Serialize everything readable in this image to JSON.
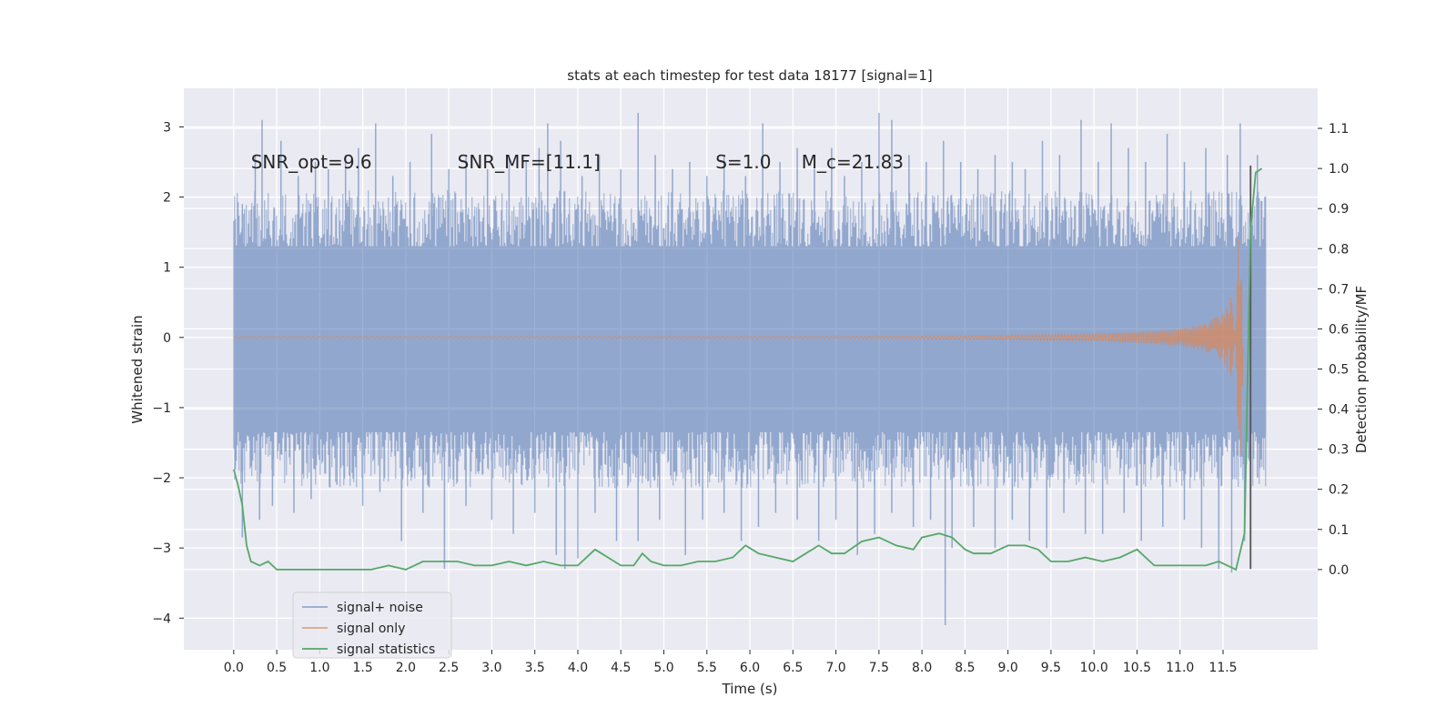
{
  "chart_data": {
    "type": "line",
    "title": "stats at each timestep for test data 18177 [signal=1]",
    "xlabel": "Time (s)",
    "ylabel_left": "Whitened strain",
    "ylabel_right": "Detection probability/MF",
    "xlim": [
      -0.58,
      12.6
    ],
    "ylim_left": [
      -4.45,
      3.55
    ],
    "ylim_right": [
      -0.2,
      1.2
    ],
    "x_ticks": [
      0.0,
      0.5,
      1.0,
      1.5,
      2.0,
      2.5,
      3.0,
      3.5,
      4.0,
      4.5,
      5.0,
      5.5,
      6.0,
      6.5,
      7.0,
      7.5,
      8.0,
      8.5,
      9.0,
      9.5,
      10.0,
      10.5,
      11.0,
      11.5
    ],
    "x_tick_labels": [
      "0.0",
      "0.5",
      "1.0",
      "1.5",
      "2.0",
      "2.5",
      "3.0",
      "3.5",
      "4.0",
      "4.5",
      "5.0",
      "5.5",
      "6.0",
      "6.5",
      "7.0",
      "7.5",
      "8.0",
      "8.5",
      "9.0",
      "9.5",
      "10.0",
      "10.5",
      "11.0",
      "11.5"
    ],
    "y_left_ticks": [
      3,
      2,
      1,
      0,
      -1,
      -2,
      -3,
      -4
    ],
    "y_left_tick_labels": [
      "3",
      "2",
      "1",
      "0",
      "−1",
      "−2",
      "−3",
      "−4"
    ],
    "y_right_ticks": [
      1.1,
      1.0,
      0.9,
      0.8,
      0.7,
      0.6,
      0.5,
      0.4,
      0.3,
      0.2,
      0.1,
      0.0
    ],
    "y_right_tick_labels": [
      "1.1",
      "1.0",
      "0.9",
      "0.8",
      "0.7",
      "0.6",
      "0.5",
      "0.4",
      "0.3",
      "0.2",
      "0.1",
      "0.0"
    ],
    "grid": true,
    "legend_position": "lower-left",
    "annotations": [
      {
        "text": "SNR_opt=9.6",
        "x": 0.2,
        "y_right": 1.0
      },
      {
        "text": "SNR_MF=[11.1]",
        "x": 2.6,
        "y_right": 1.0
      },
      {
        "text": "S=1.0",
        "x": 5.6,
        "y_right": 1.0
      },
      {
        "text": "M_c=21.83",
        "x": 6.6,
        "y_right": 1.0
      }
    ],
    "vline": {
      "x": 11.82,
      "y_left_range": [
        -3.3,
        2.45
      ],
      "color": "#555555"
    },
    "series": [
      {
        "name": "signal+ noise",
        "color": "#4c72b0",
        "axis": "left",
        "x_range": [
          0.0,
          12.0
        ],
        "core_envelope": [
          -1.35,
          1.3
        ],
        "peaks": [
          [
            0.1,
            1.9
          ],
          [
            0.25,
            2.6
          ],
          [
            0.33,
            3.1
          ],
          [
            0.55,
            2.8
          ],
          [
            0.75,
            2.3
          ],
          [
            0.95,
            2.5
          ],
          [
            1.1,
            2.4
          ],
          [
            1.3,
            2.6
          ],
          [
            1.45,
            2.7
          ],
          [
            1.65,
            3.05
          ],
          [
            1.85,
            2.3
          ],
          [
            2.05,
            2.5
          ],
          [
            2.3,
            2.9
          ],
          [
            2.5,
            2.4
          ],
          [
            2.7,
            2.6
          ],
          [
            2.95,
            2.4
          ],
          [
            3.2,
            2.6
          ],
          [
            3.4,
            2.5
          ],
          [
            3.55,
            2.7
          ],
          [
            3.65,
            3.05
          ],
          [
            3.8,
            2.8
          ],
          [
            4.05,
            2.3
          ],
          [
            4.25,
            2.6
          ],
          [
            4.5,
            2.4
          ],
          [
            4.7,
            3.2
          ],
          [
            4.9,
            2.6
          ],
          [
            5.1,
            2.4
          ],
          [
            5.3,
            2.5
          ],
          [
            5.5,
            2.3
          ],
          [
            5.7,
            2.6
          ],
          [
            5.95,
            2.3
          ],
          [
            6.15,
            3.05
          ],
          [
            6.35,
            2.5
          ],
          [
            6.55,
            2.7
          ],
          [
            6.75,
            2.4
          ],
          [
            6.95,
            2.7
          ],
          [
            7.1,
            2.3
          ],
          [
            7.3,
            2.5
          ],
          [
            7.5,
            3.2
          ],
          [
            7.65,
            3.1
          ],
          [
            7.85,
            2.6
          ],
          [
            8.05,
            2.5
          ],
          [
            8.25,
            2.8
          ],
          [
            8.45,
            2.5
          ],
          [
            8.65,
            2.4
          ],
          [
            8.85,
            2.6
          ],
          [
            9.05,
            2.5
          ],
          [
            9.2,
            2.4
          ],
          [
            9.4,
            2.8
          ],
          [
            9.6,
            2.6
          ],
          [
            9.85,
            3.1
          ],
          [
            10.05,
            2.5
          ],
          [
            10.2,
            3.05
          ],
          [
            10.4,
            2.7
          ],
          [
            10.6,
            2.5
          ],
          [
            10.85,
            2.9
          ],
          [
            11.05,
            2.5
          ],
          [
            11.3,
            2.7
          ],
          [
            11.55,
            2.6
          ],
          [
            11.7,
            3.05
          ],
          [
            11.9,
            2.6
          ]
        ],
        "troughs": [
          [
            0.1,
            -2.85
          ],
          [
            0.3,
            -2.6
          ],
          [
            0.45,
            -2.4
          ],
          [
            0.7,
            -2.5
          ],
          [
            0.9,
            -2.3
          ],
          [
            1.2,
            -2.1
          ],
          [
            1.5,
            -2.4
          ],
          [
            1.7,
            -2.2
          ],
          [
            1.95,
            -2.9
          ],
          [
            2.2,
            -2.5
          ],
          [
            2.45,
            -3.3
          ],
          [
            2.7,
            -2.4
          ],
          [
            3.0,
            -2.6
          ],
          [
            3.25,
            -2.8
          ],
          [
            3.5,
            -2.5
          ],
          [
            3.75,
            -3.1
          ],
          [
            3.85,
            -3.3
          ],
          [
            4.0,
            -3.15
          ],
          [
            4.2,
            -2.5
          ],
          [
            4.45,
            -2.9
          ],
          [
            4.7,
            -2.9
          ],
          [
            4.95,
            -2.6
          ],
          [
            5.25,
            -3.1
          ],
          [
            5.45,
            -2.6
          ],
          [
            5.7,
            -2.5
          ],
          [
            5.9,
            -2.9
          ],
          [
            6.1,
            -2.7
          ],
          [
            6.3,
            -2.5
          ],
          [
            6.55,
            -2.6
          ],
          [
            6.8,
            -2.9
          ],
          [
            7.0,
            -2.6
          ],
          [
            7.25,
            -3.1
          ],
          [
            7.45,
            -2.8
          ],
          [
            7.65,
            -2.5
          ],
          [
            7.9,
            -2.7
          ],
          [
            8.1,
            -2.6
          ],
          [
            8.27,
            -4.1
          ],
          [
            8.35,
            -3.0
          ],
          [
            8.6,
            -2.7
          ],
          [
            8.85,
            -3.0
          ],
          [
            9.05,
            -2.6
          ],
          [
            9.25,
            -2.9
          ],
          [
            9.45,
            -3.0
          ],
          [
            9.65,
            -2.5
          ],
          [
            9.9,
            -2.8
          ],
          [
            10.1,
            -2.8
          ],
          [
            10.35,
            -2.5
          ],
          [
            10.55,
            -2.9
          ],
          [
            10.8,
            -2.7
          ],
          [
            11.05,
            -2.6
          ],
          [
            11.25,
            -3.0
          ],
          [
            11.45,
            -3.3
          ],
          [
            11.6,
            -3.35
          ],
          [
            11.75,
            -2.9
          ],
          [
            11.9,
            -2.0
          ]
        ]
      },
      {
        "name": "signal only",
        "color": "#dd8452",
        "axis": "left",
        "x": [
          0.0,
          7.0,
          8.0,
          9.0,
          10.0,
          10.5,
          11.0,
          11.3,
          11.5,
          11.6,
          11.65,
          11.7,
          11.74
        ],
        "envelope": [
          0.005,
          0.01,
          0.02,
          0.03,
          0.05,
          0.08,
          0.12,
          0.2,
          0.35,
          0.6,
          0.9,
          1.8,
          0.3
        ]
      },
      {
        "name": "signal statistics",
        "color": "#55a868",
        "axis": "right",
        "x": [
          0.0,
          0.05,
          0.1,
          0.15,
          0.2,
          0.3,
          0.4,
          0.5,
          0.6,
          0.8,
          1.0,
          1.2,
          1.4,
          1.6,
          1.8,
          2.0,
          2.2,
          2.4,
          2.6,
          2.8,
          3.0,
          3.2,
          3.4,
          3.6,
          3.8,
          4.0,
          4.2,
          4.35,
          4.5,
          4.65,
          4.75,
          4.85,
          5.0,
          5.2,
          5.4,
          5.6,
          5.8,
          5.95,
          6.1,
          6.3,
          6.5,
          6.65,
          6.8,
          6.95,
          7.1,
          7.3,
          7.5,
          7.7,
          7.9,
          8.0,
          8.2,
          8.35,
          8.5,
          8.6,
          8.8,
          9.0,
          9.2,
          9.35,
          9.5,
          9.7,
          9.9,
          10.1,
          10.3,
          10.5,
          10.7,
          10.9,
          11.1,
          11.3,
          11.45,
          11.55,
          11.65,
          11.75,
          11.82,
          11.88,
          11.95
        ],
        "values": [
          0.25,
          0.21,
          0.16,
          0.06,
          0.02,
          0.01,
          0.02,
          0.0,
          0.0,
          0.0,
          0.0,
          0.0,
          0.0,
          0.0,
          0.01,
          0.0,
          0.02,
          0.02,
          0.02,
          0.01,
          0.01,
          0.02,
          0.01,
          0.02,
          0.01,
          0.01,
          0.05,
          0.03,
          0.01,
          0.01,
          0.04,
          0.02,
          0.01,
          0.01,
          0.02,
          0.02,
          0.03,
          0.06,
          0.04,
          0.03,
          0.02,
          0.04,
          0.06,
          0.04,
          0.04,
          0.07,
          0.08,
          0.06,
          0.05,
          0.08,
          0.09,
          0.08,
          0.05,
          0.04,
          0.04,
          0.06,
          0.06,
          0.05,
          0.02,
          0.02,
          0.03,
          0.02,
          0.03,
          0.05,
          0.01,
          0.01,
          0.01,
          0.01,
          0.02,
          0.01,
          0.0,
          0.09,
          0.85,
          0.99,
          1.0
        ]
      }
    ]
  }
}
